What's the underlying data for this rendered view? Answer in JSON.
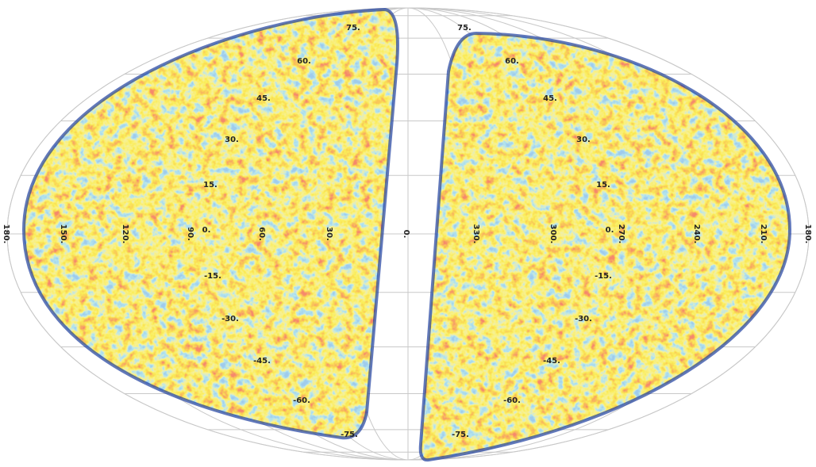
{
  "longitude_labels": [
    "180.",
    "150.",
    "120.",
    "90.",
    "60.",
    "30.",
    "0.",
    "330.",
    "300.",
    "270.",
    "240.",
    "210.",
    "180."
  ],
  "latitude_labels_left": [
    "75.",
    "60.",
    "45.",
    "30.",
    "15.",
    "0.",
    "-15.",
    "-30.",
    "-45.",
    "-60.",
    "-75."
  ],
  "latitude_labels_right": [
    "75.",
    "60.",
    "45.",
    "30.",
    "15.",
    "0.",
    "-15.",
    "-30.",
    "-45.",
    "-60.",
    "-75."
  ]
}
